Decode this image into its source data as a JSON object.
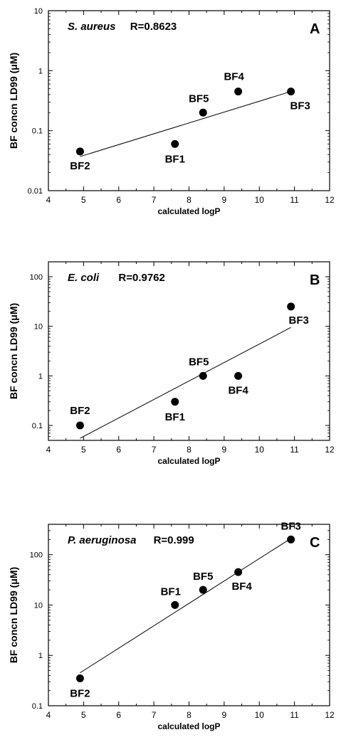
{
  "chart_data": [
    {
      "type": "scatter",
      "panel_letter": "A",
      "organism": "S. aureus",
      "r_label": "R=0.8623",
      "xlabel": "calculated logP",
      "ylabel": "BF concn LD99 (μM)",
      "x_ticks": [
        "4",
        "5",
        "6",
        "7",
        "8",
        "9",
        "10",
        "11",
        "12"
      ],
      "y_ticks": [
        "0.01",
        "0.1",
        "1",
        "10"
      ],
      "xlim": [
        4,
        12
      ],
      "ylim": [
        0.01,
        10
      ],
      "y_scale": "log",
      "points": [
        {
          "label": "BF2",
          "x": 4.9,
          "y": 0.045
        },
        {
          "label": "BF1",
          "x": 7.6,
          "y": 0.06
        },
        {
          "label": "BF5",
          "x": 8.4,
          "y": 0.2
        },
        {
          "label": "BF4",
          "x": 9.4,
          "y": 0.45
        },
        {
          "label": "BF3",
          "x": 10.9,
          "y": 0.45
        }
      ],
      "fit": {
        "x": [
          4.9,
          10.9
        ],
        "y": [
          0.037,
          0.45
        ]
      }
    },
    {
      "type": "scatter",
      "panel_letter": "B",
      "organism": "E. coli",
      "r_label": "R=0.9762",
      "xlabel": "calculated logP",
      "ylabel": "BF concn LD99 (μM)",
      "x_ticks": [
        "4",
        "5",
        "6",
        "7",
        "8",
        "9",
        "10",
        "11",
        "12"
      ],
      "y_ticks": [
        "0.1",
        "1",
        "10",
        "100"
      ],
      "xlim": [
        4,
        12
      ],
      "ylim": [
        0.05,
        200
      ],
      "y_scale": "log",
      "points": [
        {
          "label": "BF2",
          "x": 4.9,
          "y": 0.1
        },
        {
          "label": "BF1",
          "x": 7.6,
          "y": 0.3
        },
        {
          "label": "BF5",
          "x": 8.4,
          "y": 1.0
        },
        {
          "label": "BF4",
          "x": 9.4,
          "y": 1.0
        },
        {
          "label": "BF3",
          "x": 10.9,
          "y": 25
        }
      ],
      "fit": {
        "x": [
          4.9,
          10.9
        ],
        "y": [
          0.055,
          9.5
        ]
      }
    },
    {
      "type": "scatter",
      "panel_letter": "C",
      "organism": "P. aeruginosa",
      "r_label": "R=0.999",
      "xlabel": "calculated logP",
      "ylabel": "BF concn LD99 (μM)",
      "x_ticks": [
        "4",
        "5",
        "6",
        "7",
        "8",
        "9",
        "10",
        "11",
        "12"
      ],
      "y_ticks": [
        "0.1",
        "1",
        "10",
        "100"
      ],
      "xlim": [
        4,
        12
      ],
      "ylim": [
        0.1,
        400
      ],
      "y_scale": "log",
      "points": [
        {
          "label": "BF2",
          "x": 4.9,
          "y": 0.35
        },
        {
          "label": "BF1",
          "x": 7.6,
          "y": 10
        },
        {
          "label": "BF5",
          "x": 8.4,
          "y": 20
        },
        {
          "label": "BF4",
          "x": 9.4,
          "y": 45
        },
        {
          "label": "BF3",
          "x": 10.9,
          "y": 200
        }
      ],
      "fit": {
        "x": [
          4.9,
          10.9
        ],
        "y": [
          0.45,
          210
        ]
      }
    }
  ]
}
